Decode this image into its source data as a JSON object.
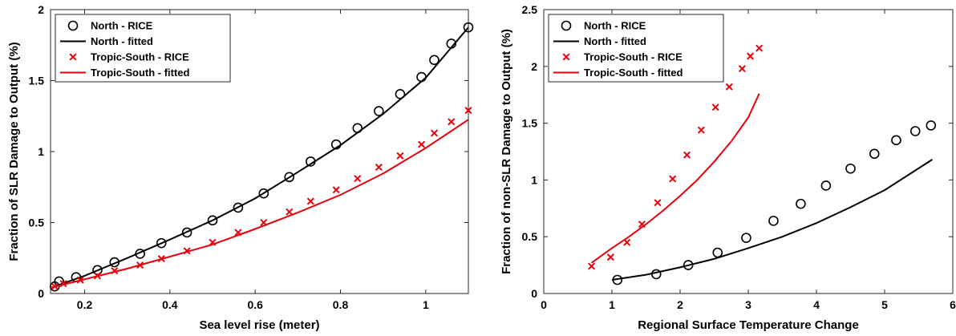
{
  "chart_data": [
    {
      "type": "scatter",
      "xlabel": "Sea level rise (meter)",
      "ylabel": "Fraction of SLR Damage to Output (%)",
      "xlim": [
        0.12,
        1.1
      ],
      "ylim": [
        0,
        2
      ],
      "xticks": [
        0.2,
        0.4,
        0.6,
        0.8,
        1
      ],
      "xtick_labels": [
        "0.2",
        "0.4",
        "0.6",
        "0.8",
        "1"
      ],
      "yticks": [
        0,
        0.5,
        1,
        1.5,
        2
      ],
      "ytick_labels": [
        "0",
        "0.5",
        "1",
        "1.5",
        "2"
      ],
      "legend_position": "top-left",
      "series": [
        {
          "name": "North - RICE",
          "kind": "markers",
          "marker": "circle",
          "color": "#000000",
          "x": [
            0.13,
            0.14,
            0.18,
            0.23,
            0.27,
            0.33,
            0.38,
            0.44,
            0.5,
            0.56,
            0.62,
            0.68,
            0.73,
            0.79,
            0.84,
            0.89,
            0.94,
            0.99,
            1.02,
            1.06,
            1.1
          ],
          "y": [
            0.05,
            0.085,
            0.115,
            0.165,
            0.22,
            0.28,
            0.355,
            0.43,
            0.515,
            0.605,
            0.705,
            0.82,
            0.93,
            1.05,
            1.165,
            1.285,
            1.405,
            1.525,
            1.645,
            1.76,
            1.875
          ]
        },
        {
          "name": "North - fitted",
          "kind": "line",
          "color": "#000000",
          "x": [
            0.12,
            0.2,
            0.3,
            0.4,
            0.5,
            0.6,
            0.7,
            0.8,
            0.9,
            1.0,
            1.1
          ],
          "y": [
            0.04,
            0.125,
            0.25,
            0.38,
            0.515,
            0.67,
            0.855,
            1.045,
            1.265,
            1.52,
            1.875
          ]
        },
        {
          "name": "Tropic-South - RICE",
          "kind": "markers",
          "marker": "x",
          "color": "#e8000b",
          "x": [
            0.13,
            0.15,
            0.19,
            0.23,
            0.27,
            0.33,
            0.38,
            0.44,
            0.5,
            0.56,
            0.62,
            0.68,
            0.73,
            0.79,
            0.84,
            0.89,
            0.94,
            0.99,
            1.02,
            1.06,
            1.1
          ],
          "y": [
            0.05,
            0.07,
            0.095,
            0.125,
            0.16,
            0.2,
            0.245,
            0.3,
            0.36,
            0.43,
            0.5,
            0.575,
            0.65,
            0.73,
            0.81,
            0.89,
            0.97,
            1.05,
            1.13,
            1.21,
            1.29
          ]
        },
        {
          "name": "Tropic-South - fitted",
          "kind": "line",
          "color": "#e8000b",
          "x": [
            0.12,
            0.2,
            0.3,
            0.4,
            0.5,
            0.6,
            0.7,
            0.8,
            0.9,
            1.0,
            1.1
          ],
          "y": [
            0.04,
            0.1,
            0.175,
            0.26,
            0.345,
            0.455,
            0.57,
            0.695,
            0.845,
            1.025,
            1.225
          ]
        }
      ]
    },
    {
      "type": "scatter",
      "xlabel": "Regional Surface Temperature Change",
      "ylabel": "Fraction of non-SLR Damage to Output (%)",
      "xlim": [
        0,
        6
      ],
      "ylim": [
        0,
        2.5
      ],
      "xticks": [
        0,
        1,
        2,
        3,
        4,
        5,
        6
      ],
      "xtick_labels": [
        "0",
        "1",
        "2",
        "3",
        "4",
        "5",
        "6"
      ],
      "yticks": [
        0,
        0.5,
        1,
        1.5,
        2,
        2.5
      ],
      "ytick_labels": [
        "0",
        "0.5",
        "1",
        "1.5",
        "2",
        "2.5"
      ],
      "legend_position": "top-left",
      "series": [
        {
          "name": "North - RICE",
          "kind": "markers",
          "marker": "circle",
          "color": "#000000",
          "x": [
            1.08,
            1.65,
            2.12,
            2.55,
            2.97,
            3.37,
            3.77,
            4.14,
            4.5,
            4.85,
            5.17,
            5.45,
            5.68
          ],
          "y": [
            0.12,
            0.17,
            0.25,
            0.36,
            0.49,
            0.64,
            0.79,
            0.95,
            1.1,
            1.23,
            1.35,
            1.43,
            1.48
          ]
        },
        {
          "name": "North - fitted",
          "kind": "line",
          "color": "#000000",
          "x": [
            1.0,
            1.5,
            2.0,
            2.5,
            3.0,
            3.5,
            4.0,
            4.5,
            5.0,
            5.7
          ],
          "y": [
            0.12,
            0.165,
            0.23,
            0.305,
            0.4,
            0.5,
            0.62,
            0.76,
            0.91,
            1.18
          ]
        },
        {
          "name": "Tropic-South - RICE",
          "kind": "markers",
          "marker": "x",
          "color": "#e8000b",
          "x": [
            0.7,
            0.98,
            1.22,
            1.44,
            1.67,
            1.89,
            2.1,
            2.31,
            2.52,
            2.72,
            2.91,
            3.03,
            3.16
          ],
          "y": [
            0.24,
            0.32,
            0.45,
            0.61,
            0.8,
            1.01,
            1.22,
            1.44,
            1.64,
            1.82,
            1.98,
            2.09,
            2.16
          ]
        },
        {
          "name": "Tropic-South - fitted",
          "kind": "line",
          "color": "#e8000b",
          "x": [
            0.7,
            1.0,
            1.25,
            1.5,
            1.75,
            2.0,
            2.25,
            2.5,
            2.75,
            3.0,
            3.16
          ],
          "y": [
            0.27,
            0.4,
            0.5,
            0.61,
            0.73,
            0.86,
            1.0,
            1.16,
            1.34,
            1.55,
            1.76
          ]
        }
      ]
    }
  ]
}
